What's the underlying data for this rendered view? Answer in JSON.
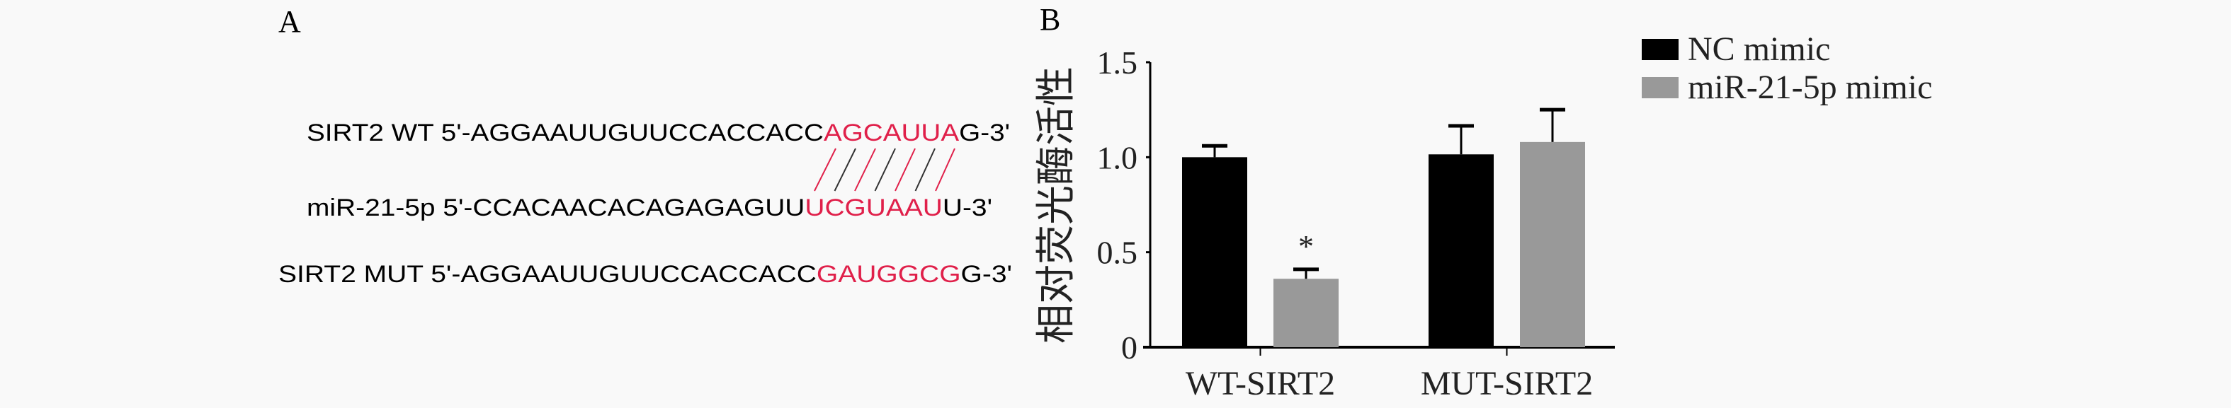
{
  "panel_a": {
    "label": "A",
    "highlight_color": "#e0204a",
    "sequences": [
      {
        "prefix": "SIRT2 WT 5'-AGGAAUUGUUCCACCACC",
        "highlight": "AGCAUUA",
        "suffix": "G-3'"
      },
      {
        "prefix": "miR-21-5p 5'-CCACAACACAGAGAGUU",
        "highlight": "UCGUAAU",
        "suffix": "U-3'"
      },
      {
        "prefix": "SIRT2 MUT 5'-AGGAAUUGUUCCACCACC",
        "highlight": "GAUGGCG",
        "suffix": "G-3'"
      }
    ]
  },
  "panel_b": {
    "label": "B"
  },
  "chart_data": {
    "type": "bar",
    "title": "",
    "xlabel": "",
    "ylabel": "相对荧光酶活性",
    "ylim": [
      0,
      1.5
    ],
    "yticks": [
      "0",
      "0.5",
      "1.0",
      "1.5"
    ],
    "categories": [
      "WT-SIRT2",
      "MUT-SIRT2"
    ],
    "grid": false,
    "legend_position": "top-right",
    "series": [
      {
        "name": "NC mimic",
        "color": "#000000",
        "values": [
          1.0,
          1.015
        ],
        "errors": [
          0.06,
          0.15
        ]
      },
      {
        "name": "miR-21-5p mimic",
        "color": "#999999",
        "values": [
          0.36,
          1.08
        ],
        "errors": [
          0.05,
          0.17
        ]
      }
    ],
    "annotations": [
      {
        "text": "*",
        "category": "WT-SIRT2",
        "series": "miR-21-5p mimic"
      }
    ]
  }
}
